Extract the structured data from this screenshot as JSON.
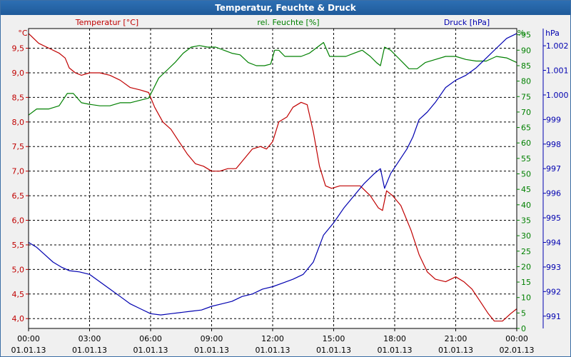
{
  "chart_data": {
    "type": "line",
    "title": "Temperatur, Feuchte & Druck",
    "colors": {
      "temp": "#c00000",
      "hum": "#008000",
      "press": "#0000b0",
      "axis": "#000000"
    },
    "axes": {
      "temp": {
        "label": "Temperatur [°C]",
        "unit": "°C",
        "min": 3.8,
        "max": 9.9,
        "ticks": [
          "4,0",
          "4,5",
          "5,0",
          "5,5",
          "6,0",
          "6,5",
          "7,0",
          "7,5",
          "8,0",
          "8,5",
          "9,0",
          "9,5"
        ],
        "tick_values": [
          4.0,
          4.5,
          5.0,
          5.5,
          6.0,
          6.5,
          7.0,
          7.5,
          8.0,
          8.5,
          9.0,
          9.5
        ]
      },
      "hum": {
        "label": "rel. Feuchte [%]",
        "unit": "%",
        "min": 0,
        "max": 97,
        "ticks": [
          "0",
          "5",
          "10",
          "15",
          "20",
          "25",
          "30",
          "35",
          "40",
          "45",
          "50",
          "55",
          "60",
          "65",
          "70",
          "75",
          "80",
          "85",
          "90",
          "95"
        ],
        "tick_values": [
          0,
          5,
          10,
          15,
          20,
          25,
          30,
          35,
          40,
          45,
          50,
          55,
          60,
          65,
          70,
          75,
          80,
          85,
          90,
          95
        ]
      },
      "press": {
        "label": "Druck [hPa]",
        "unit": "hPa",
        "min": 990.5,
        "max": 1002.7,
        "ticks": [
          "991",
          "992",
          "993",
          "994",
          "995",
          "996",
          "997",
          "998",
          "999",
          "1.000",
          "1.001",
          "1.002"
        ],
        "tick_values": [
          991,
          992,
          993,
          994,
          995,
          996,
          997,
          998,
          999,
          1000,
          1001,
          1002
        ]
      }
    },
    "x": {
      "min": 0,
      "max": 24,
      "ticks": [
        {
          "h": 0,
          "time": "00:00",
          "date": "01.01.13"
        },
        {
          "h": 3,
          "time": "03:00",
          "date": "01.01.13"
        },
        {
          "h": 6,
          "time": "06:00",
          "date": "01.01.13"
        },
        {
          "h": 9,
          "time": "09:00",
          "date": "01.01.13"
        },
        {
          "h": 12,
          "time": "12:00",
          "date": "01.01.13"
        },
        {
          "h": 15,
          "time": "15:00",
          "date": "01.01.13"
        },
        {
          "h": 18,
          "time": "18:00",
          "date": "01.01.13"
        },
        {
          "h": 21,
          "time": "21:00",
          "date": "01.01.13"
        },
        {
          "h": 24,
          "time": "00:00",
          "date": "02.01.13"
        }
      ]
    },
    "grid": true,
    "series": [
      {
        "name": "Temperatur [°C]",
        "axis": "temp",
        "points": [
          [
            0,
            9.8
          ],
          [
            0.5,
            9.6
          ],
          [
            1,
            9.5
          ],
          [
            1.5,
            9.4
          ],
          [
            1.8,
            9.3
          ],
          [
            2,
            9.1
          ],
          [
            2.3,
            9.0
          ],
          [
            2.6,
            8.95
          ],
          [
            3,
            9.0
          ],
          [
            3.5,
            9.0
          ],
          [
            4,
            8.95
          ],
          [
            4.5,
            8.85
          ],
          [
            5,
            8.7
          ],
          [
            5.5,
            8.65
          ],
          [
            5.9,
            8.6
          ],
          [
            6.2,
            8.3
          ],
          [
            6.6,
            8.0
          ],
          [
            7,
            7.85
          ],
          [
            7.4,
            7.6
          ],
          [
            7.8,
            7.35
          ],
          [
            8.2,
            7.15
          ],
          [
            8.6,
            7.1
          ],
          [
            9,
            7.0
          ],
          [
            9.4,
            7.0
          ],
          [
            9.8,
            7.05
          ],
          [
            10.2,
            7.05
          ],
          [
            10.6,
            7.25
          ],
          [
            11,
            7.45
          ],
          [
            11.4,
            7.5
          ],
          [
            11.7,
            7.45
          ],
          [
            12.0,
            7.6
          ],
          [
            12.3,
            8.0
          ],
          [
            12.7,
            8.1
          ],
          [
            13.0,
            8.3
          ],
          [
            13.4,
            8.4
          ],
          [
            13.7,
            8.35
          ],
          [
            14.0,
            7.8
          ],
          [
            14.3,
            7.1
          ],
          [
            14.6,
            6.7
          ],
          [
            14.9,
            6.65
          ],
          [
            15.3,
            6.7
          ],
          [
            15.8,
            6.7
          ],
          [
            16.3,
            6.7
          ],
          [
            16.8,
            6.5
          ],
          [
            17.2,
            6.25
          ],
          [
            17.4,
            6.2
          ],
          [
            17.6,
            6.6
          ],
          [
            17.9,
            6.5
          ],
          [
            18.3,
            6.3
          ],
          [
            18.8,
            5.8
          ],
          [
            19.2,
            5.3
          ],
          [
            19.6,
            4.95
          ],
          [
            20.0,
            4.8
          ],
          [
            20.5,
            4.75
          ],
          [
            21,
            4.85
          ],
          [
            21.4,
            4.75
          ],
          [
            21.8,
            4.6
          ],
          [
            22.2,
            4.35
          ],
          [
            22.6,
            4.1
          ],
          [
            22.9,
            3.95
          ],
          [
            23.3,
            3.95
          ],
          [
            23.7,
            4.1
          ],
          [
            24,
            4.2
          ]
        ]
      },
      {
        "name": "rel. Feuchte [%]",
        "axis": "hum",
        "points": [
          [
            0,
            69
          ],
          [
            0.4,
            71
          ],
          [
            1,
            71
          ],
          [
            1.5,
            72
          ],
          [
            1.9,
            76
          ],
          [
            2.2,
            76
          ],
          [
            2.6,
            73
          ],
          [
            3,
            72.5
          ],
          [
            3.5,
            72
          ],
          [
            4,
            72
          ],
          [
            4.5,
            73
          ],
          [
            5,
            73
          ],
          [
            5.6,
            74
          ],
          [
            5.9,
            74.5
          ],
          [
            6.1,
            77
          ],
          [
            6.4,
            81
          ],
          [
            6.8,
            83.5
          ],
          [
            7.2,
            86
          ],
          [
            7.6,
            89
          ],
          [
            8,
            91
          ],
          [
            8.4,
            91.5
          ],
          [
            8.8,
            91
          ],
          [
            9.2,
            91
          ],
          [
            9.6,
            90
          ],
          [
            10,
            89
          ],
          [
            10.4,
            88.5
          ],
          [
            10.8,
            86
          ],
          [
            11.2,
            85
          ],
          [
            11.6,
            85
          ],
          [
            11.9,
            85.5
          ],
          [
            12.1,
            90
          ],
          [
            12.3,
            90
          ],
          [
            12.6,
            88
          ],
          [
            13,
            88
          ],
          [
            13.4,
            88
          ],
          [
            13.8,
            89
          ],
          [
            14.2,
            91
          ],
          [
            14.5,
            92.5
          ],
          [
            14.8,
            88
          ],
          [
            15.2,
            88
          ],
          [
            15.6,
            88
          ],
          [
            16,
            89
          ],
          [
            16.4,
            90
          ],
          [
            16.8,
            88
          ],
          [
            17.1,
            86
          ],
          [
            17.3,
            85
          ],
          [
            17.5,
            91
          ],
          [
            17.8,
            90
          ],
          [
            18.1,
            88
          ],
          [
            18.4,
            86
          ],
          [
            18.7,
            84
          ],
          [
            19.1,
            84
          ],
          [
            19.5,
            86
          ],
          [
            20,
            87
          ],
          [
            20.5,
            88
          ],
          [
            21,
            88
          ],
          [
            21.5,
            87
          ],
          [
            22,
            86.5
          ],
          [
            22.5,
            86.5
          ],
          [
            23,
            88
          ],
          [
            23.5,
            87.5
          ],
          [
            24,
            86
          ]
        ]
      },
      {
        "name": "Druck [hPa]",
        "axis": "press",
        "points": [
          [
            0,
            994.0
          ],
          [
            0.4,
            993.8
          ],
          [
            0.8,
            993.5
          ],
          [
            1.2,
            993.2
          ],
          [
            1.6,
            993.0
          ],
          [
            2,
            992.85
          ],
          [
            2.5,
            992.8
          ],
          [
            3,
            992.7
          ],
          [
            3.5,
            992.4
          ],
          [
            4,
            992.1
          ],
          [
            4.5,
            991.8
          ],
          [
            5,
            991.5
          ],
          [
            5.5,
            991.3
          ],
          [
            6,
            991.1
          ],
          [
            6.5,
            991.05
          ],
          [
            7,
            991.1
          ],
          [
            7.5,
            991.15
          ],
          [
            8,
            991.2
          ],
          [
            8.5,
            991.25
          ],
          [
            9,
            991.4
          ],
          [
            9.5,
            991.5
          ],
          [
            10,
            991.6
          ],
          [
            10.5,
            991.8
          ],
          [
            11,
            991.9
          ],
          [
            11.5,
            992.1
          ],
          [
            12,
            992.2
          ],
          [
            12.5,
            992.35
          ],
          [
            13,
            992.5
          ],
          [
            13.5,
            992.7
          ],
          [
            14,
            993.2
          ],
          [
            14.5,
            994.3
          ],
          [
            15,
            994.8
          ],
          [
            15.5,
            995.4
          ],
          [
            16,
            995.9
          ],
          [
            16.5,
            996.4
          ],
          [
            17,
            996.8
          ],
          [
            17.3,
            997.0
          ],
          [
            17.5,
            996.2
          ],
          [
            17.8,
            996.8
          ],
          [
            18.2,
            997.3
          ],
          [
            18.6,
            997.8
          ],
          [
            18.9,
            998.3
          ],
          [
            19.2,
            999.0
          ],
          [
            19.6,
            999.3
          ],
          [
            20,
            999.7
          ],
          [
            20.5,
            1000.3
          ],
          [
            21,
            1000.6
          ],
          [
            21.5,
            1000.8
          ],
          [
            22,
            1001.1
          ],
          [
            22.5,
            1001.5
          ],
          [
            23,
            1001.9
          ],
          [
            23.5,
            1002.3
          ],
          [
            24,
            1002.5
          ]
        ]
      }
    ]
  }
}
